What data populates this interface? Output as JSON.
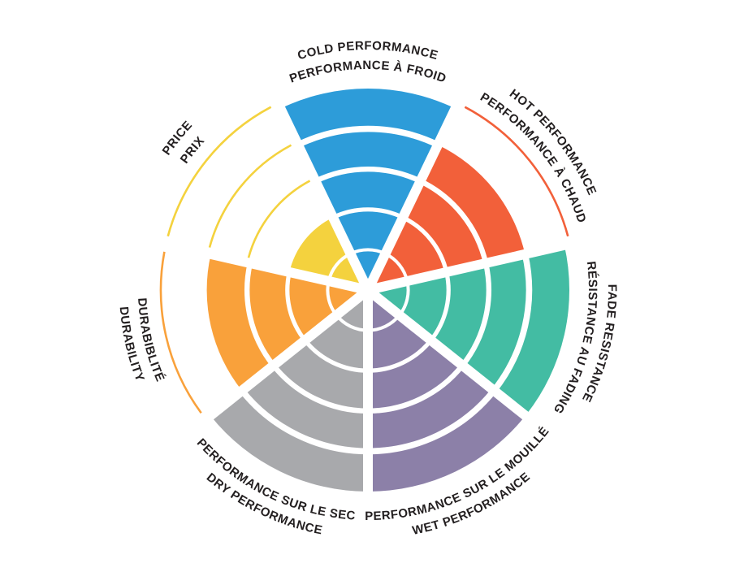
{
  "page": {
    "background": "#ffffff",
    "description": "Brake pad / tire performance wheel infographic, bilingual English-French, 7 segments rated on 5 concentric rings"
  },
  "chart_data": {
    "type": "polar-wheel",
    "title": "",
    "max_level": 5,
    "rings": 5,
    "grid": "concentric white ring separators inside filled wedges; unfilled ring levels shown as thin colored arc outlines",
    "legend_position": "labels curved around wheel, English on outer arc, French on inner arc",
    "text_color": "#231F20",
    "categories": [
      "COLD PERFORMANCE",
      "HOT PERFORMANCE",
      "FADE RESISTANCE",
      "WET PERFORMANCE",
      "DRY PERFORMANCE",
      "DURABILITY",
      "PRICE"
    ],
    "values": [
      5,
      4,
      5,
      5,
      5,
      4,
      2
    ],
    "segments": [
      {
        "id": "cold-performance",
        "label_en": "COLD PERFORMANCE",
        "label_fr": "PERFORMANCE À FROID",
        "value": 5,
        "color": "#2D9CD9",
        "label_direction": "clockwise"
      },
      {
        "id": "hot-performance",
        "label_en": "HOT PERFORMANCE",
        "label_fr": "PERFORMANCE À CHAUD",
        "value": 4,
        "color": "#F2603A",
        "label_direction": "clockwise"
      },
      {
        "id": "fade-resistance",
        "label_en": "FADE RESISTANCE",
        "label_fr": "RÉSISTANCE AU FADING",
        "value": 5,
        "color": "#43BCA3",
        "label_direction": "clockwise"
      },
      {
        "id": "wet-performance",
        "label_en": "WET PERFORMANCE",
        "label_fr": "PERFORMANCE SUR LE MOUILLÉ",
        "value": 5,
        "color": "#8C80A8",
        "label_direction": "counterclockwise"
      },
      {
        "id": "dry-performance",
        "label_en": "DRY PERFORMANCE",
        "label_fr": "PERFORMANCE SUR LE SEC",
        "value": 5,
        "color": "#A8A9AC",
        "label_direction": "counterclockwise"
      },
      {
        "id": "durability",
        "label_en": "DURABILITY",
        "label_fr": "DURABIBLITÉ",
        "value": 4,
        "color": "#F9A13B",
        "label_direction": "counterclockwise"
      },
      {
        "id": "price",
        "label_en": "PRICE",
        "label_fr": "PRIX",
        "value": 2,
        "color": "#F4D23E",
        "label_direction": "clockwise"
      }
    ]
  }
}
